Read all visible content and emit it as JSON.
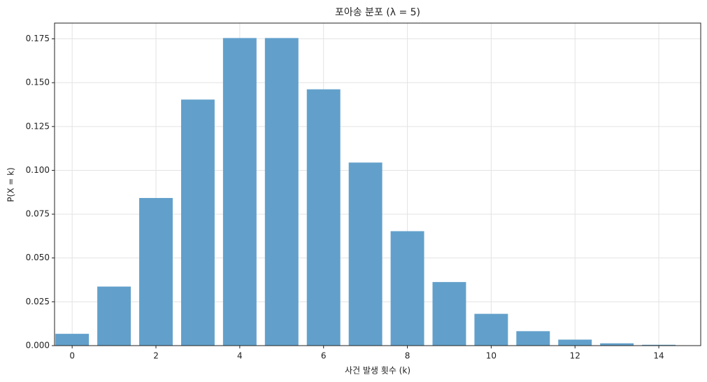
{
  "chart_data": {
    "type": "bar",
    "title": "포아송 분포 (λ = 5)",
    "x_label": "사건 발생 횟수 (k)",
    "y_label": "P(X = k)",
    "x": [
      0,
      1,
      2,
      3,
      4,
      5,
      6,
      7,
      8,
      9,
      10,
      11,
      12,
      13,
      14,
      15
    ],
    "values": [
      0.006738,
      0.03369,
      0.08422,
      0.14037,
      0.17547,
      0.17547,
      0.14622,
      0.10444,
      0.06528,
      0.03627,
      0.01813,
      0.00824,
      0.00343,
      0.00132,
      0.00047,
      0.00016
    ],
    "color": "#62a0cb",
    "xlim": [
      -0.42,
      15
    ],
    "ylim": [
      0,
      0.184
    ],
    "xticks": [
      0,
      2,
      4,
      6,
      8,
      10,
      12,
      14
    ],
    "yticks": [
      {
        "value": 0,
        "label": "0.000"
      },
      {
        "value": 0.025,
        "label": "0.025"
      },
      {
        "value": 0.05,
        "label": "0.050"
      },
      {
        "value": 0.075,
        "label": "0.075"
      },
      {
        "value": 0.1,
        "label": "0.100"
      },
      {
        "value": 0.125,
        "label": "0.125"
      },
      {
        "value": 0.15,
        "label": "0.150"
      },
      {
        "value": 0.175,
        "label": "0.175"
      }
    ],
    "grid": true
  }
}
